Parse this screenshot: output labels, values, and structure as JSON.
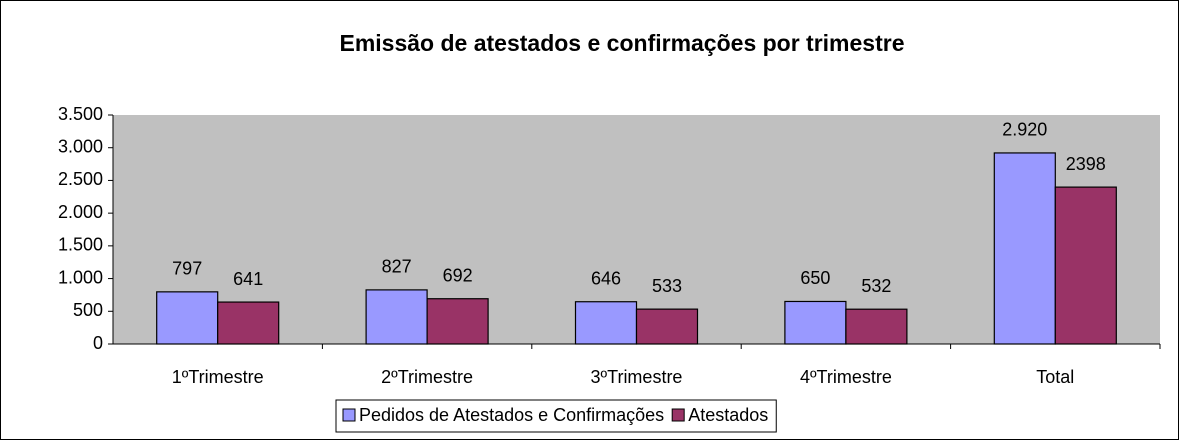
{
  "chart_data": {
    "type": "bar",
    "title": "Emissão de atestados e confirmações por trimestre",
    "categories": [
      "1ºTrimestre",
      "2ºTrimestre",
      "3ºTrimestre",
      "4ºTrimestre",
      "Total"
    ],
    "series": [
      {
        "name": "Pedidos de Atestados e Confirmações",
        "color": "#9999ff",
        "values": [
          797,
          827,
          646,
          650,
          2920
        ],
        "value_labels": [
          "797",
          "827",
          "646",
          "650",
          "2.920"
        ]
      },
      {
        "name": "Atestados",
        "color": "#993366",
        "values": [
          641,
          692,
          533,
          532,
          2398
        ]
      }
    ],
    "ylim": [
      0,
      3500
    ],
    "yticks": [
      0,
      500,
      {
        "value": 1000,
        "label": "1.000"
      },
      {
        "value": 1500,
        "label": "1.500"
      },
      {
        "value": 2000,
        "label": "2.000"
      },
      {
        "value": 2500,
        "label": "2.500"
      },
      {
        "value": 3000,
        "label": "3.000"
      },
      {
        "value": 3500,
        "label": "3.500"
      }
    ],
    "grid": false,
    "legend": "bottom"
  }
}
